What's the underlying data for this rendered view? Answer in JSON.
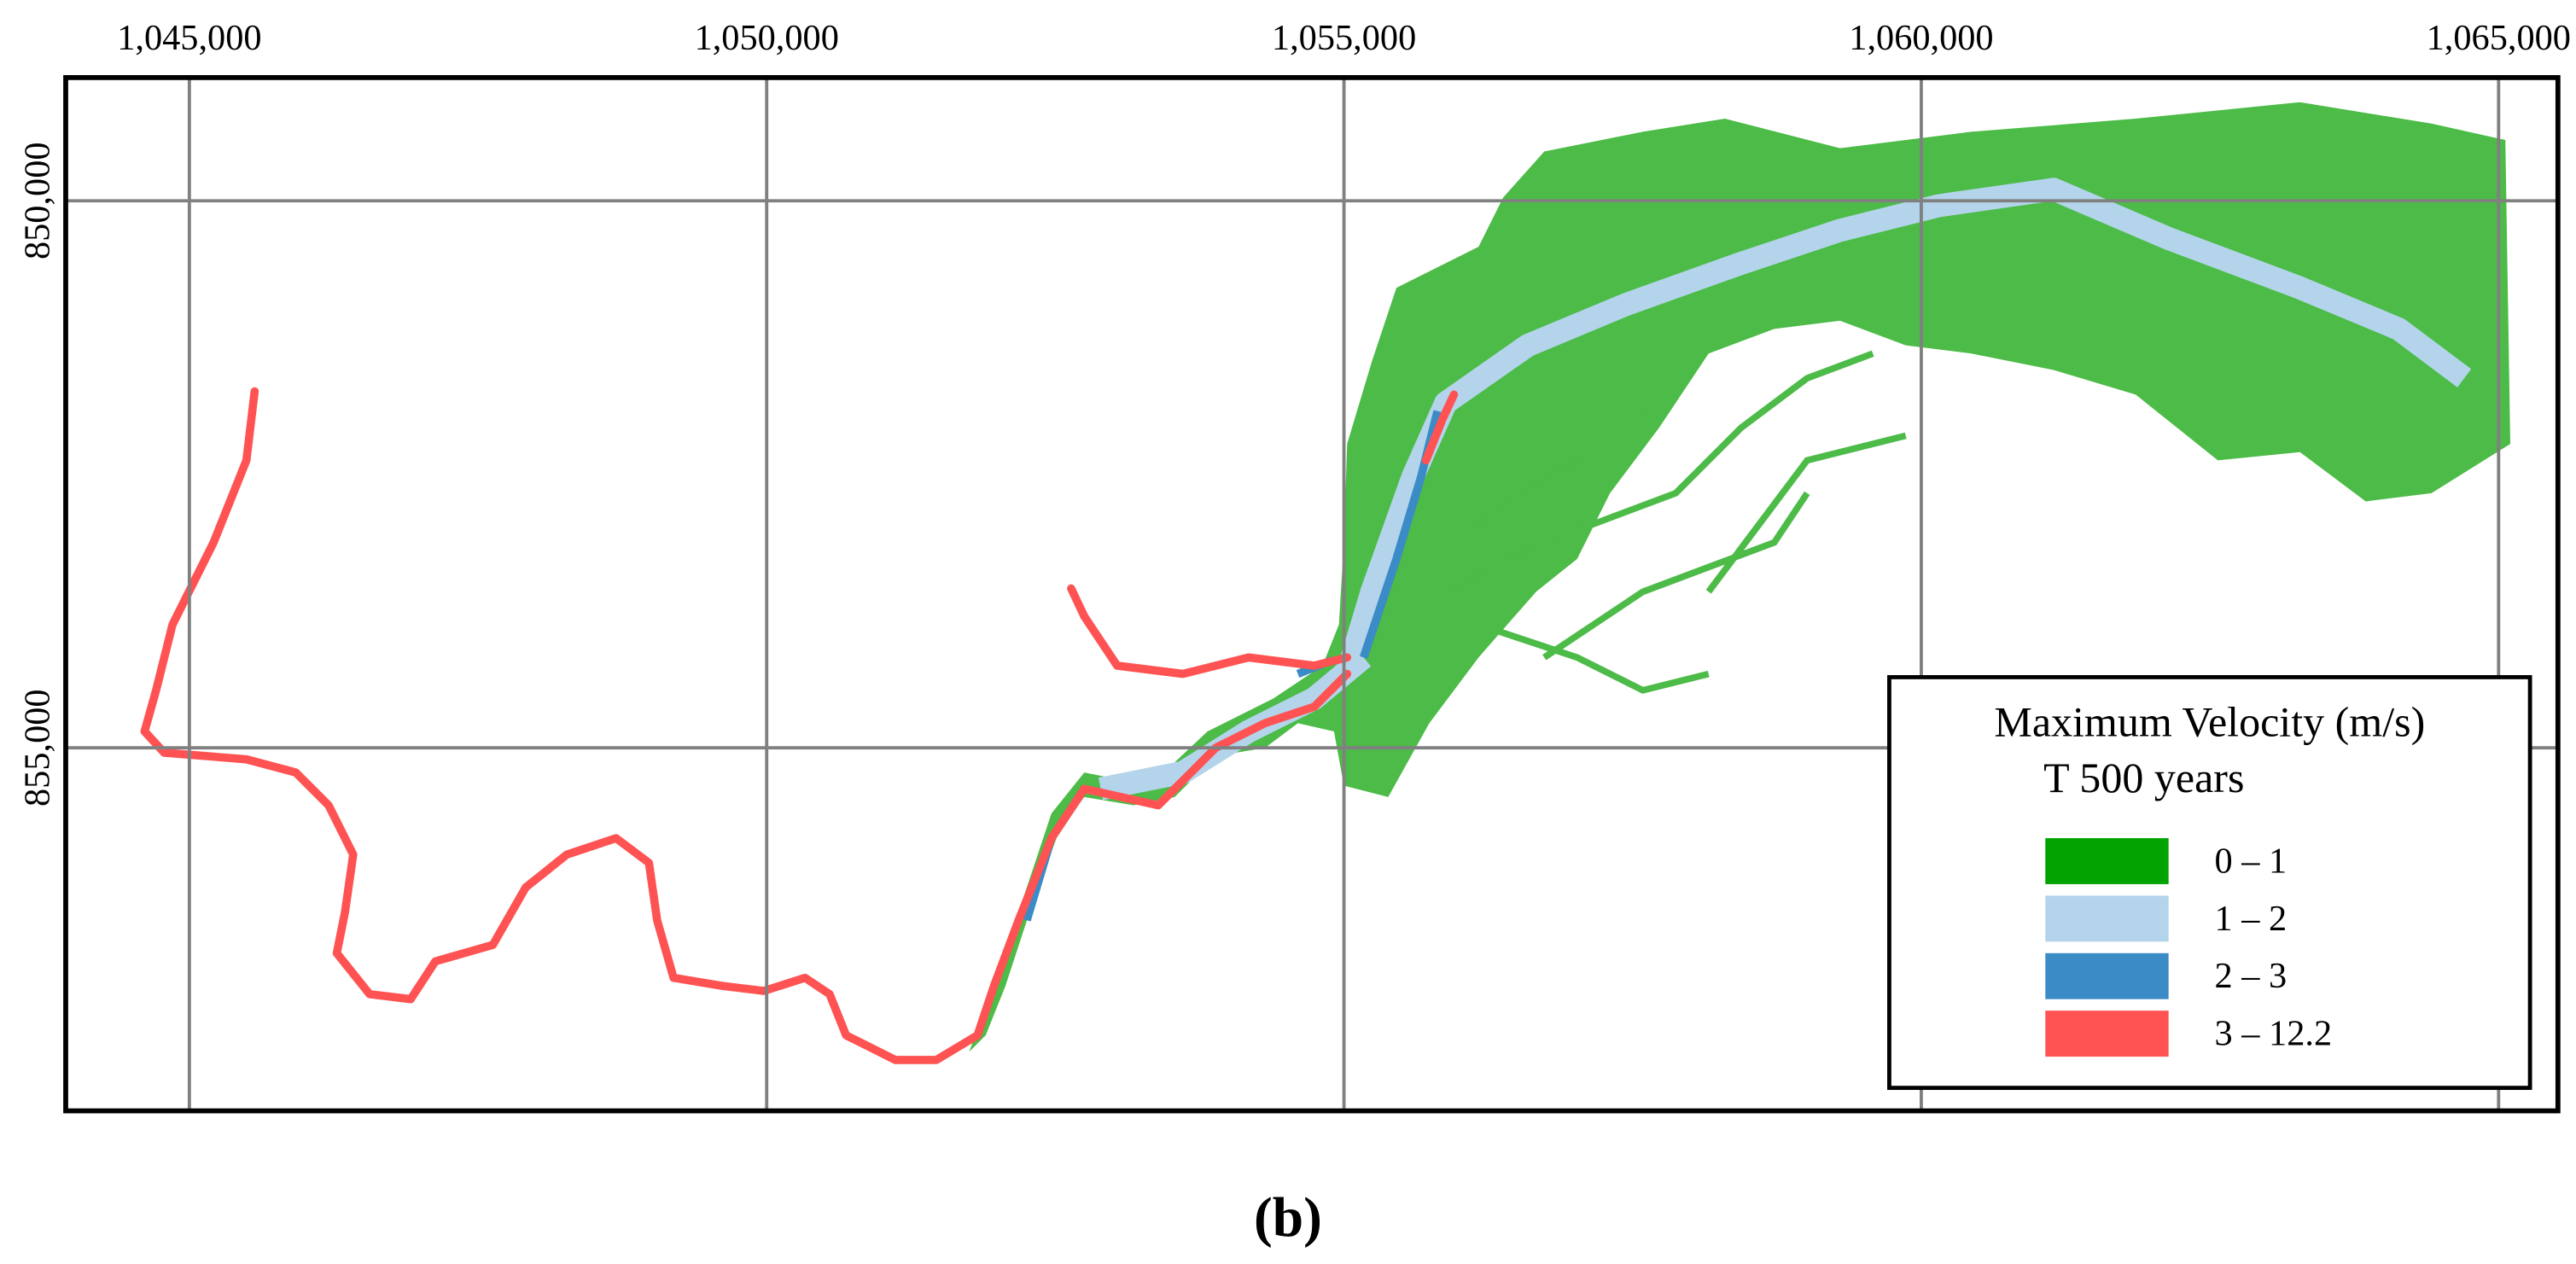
{
  "map": {
    "x_axis": {
      "xlim": [
        1043929,
        1065514
      ],
      "xticks": [
        {
          "value": 1045000,
          "label": "1,045,000"
        },
        {
          "value": 1050000,
          "label": "1,050,000"
        },
        {
          "value": 1055000,
          "label": "1,055,000"
        },
        {
          "value": 1060000,
          "label": "1,060,000"
        },
        {
          "value": 1065000,
          "label": "1,065,000"
        }
      ]
    },
    "y_axis": {
      "ylim": [
        848874,
        858318
      ],
      "yticks": [
        {
          "value": 850000,
          "label": "850,000"
        },
        {
          "value": 855000,
          "label": "855,000"
        }
      ]
    },
    "legend": {
      "title": "Maximum Velocity (m/s)",
      "subtitle": "T 500 years",
      "items": [
        {
          "label": "0 – 1",
          "color": "#00a300"
        },
        {
          "label": "1 – 2",
          "color": "#b3d4ea"
        },
        {
          "label": "2 – 3",
          "color": "#3b8bc6"
        },
        {
          "label": "3 – 12.2",
          "color": "#ff5252"
        }
      ]
    },
    "caption": "(b)"
  }
}
